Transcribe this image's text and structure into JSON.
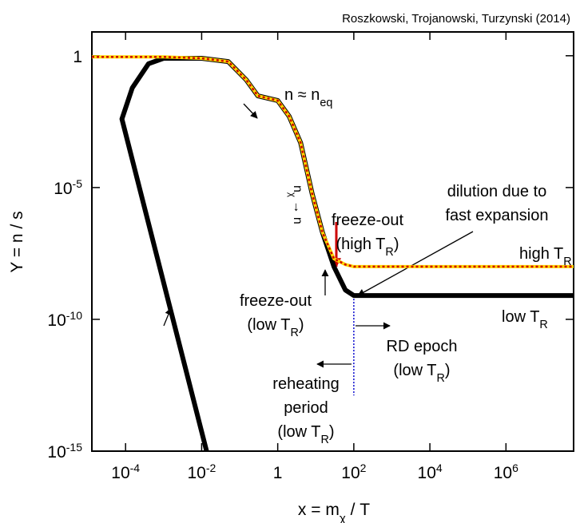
{
  "chart_data": {
    "type": "line",
    "title": "Roszkowski, Trojanowski, Turzynski (2014)",
    "xlabel": [
      {
        "text": "x = m"
      },
      {
        "text": "χ",
        "sub": true
      },
      {
        "text": " / T"
      }
    ],
    "ylabel": [
      {
        "text": "Y = n / s"
      }
    ],
    "xscale": "log",
    "yscale": "log",
    "xlim": [
      1.3e-05,
      60000000
    ],
    "ylim": [
      1e-15,
      8
    ],
    "xticks": [
      {
        "value": 0.0001,
        "label": "10",
        "sup": "-4"
      },
      {
        "value": 0.01,
        "label": "10",
        "sup": "-2"
      },
      1,
      {
        "value": 100,
        "label": "10",
        "sup": "2"
      },
      {
        "value": 10000,
        "label": "10",
        "sup": "4"
      },
      {
        "value": 1000000,
        "label": "10",
        "sup": "6"
      }
    ],
    "yticks": [
      1,
      {
        "value": 1e-05,
        "label": "10",
        "sup": "-5"
      },
      {
        "value": 1e-10,
        "label": "10",
        "sup": "-10"
      },
      {
        "value": 1e-15,
        "label": "10",
        "sup": "-15"
      }
    ],
    "series": [
      {
        "color": "#000000",
        "x": [
          0.0135,
          8e-05,
          0.00015,
          0.0004,
          0.001,
          0.01,
          0.05,
          0.15,
          0.3,
          1,
          2,
          4,
          8,
          15,
          30,
          60,
          100,
          60000000
        ],
        "y": [
          1e-15,
          0.004,
          0.06,
          0.5,
          0.8,
          0.8,
          0.6,
          0.12,
          0.03,
          0.02,
          0.005,
          0.0005,
          6e-06,
          2e-07,
          1e-08,
          1.3e-09,
          8e-10,
          8e-10
        ]
      },
      {
        "color": "#ffd700",
        "dash_color": "#cc0000",
        "x": [
          1.3e-05,
          0.001,
          0.01,
          0.05,
          0.15,
          0.3,
          1,
          2,
          4,
          8,
          15,
          30,
          60,
          100,
          60000000
        ],
        "y": [
          0.9,
          0.9,
          0.8,
          0.6,
          0.12,
          0.03,
          0.02,
          0.005,
          0.0005,
          6e-06,
          2e-07,
          2e-08,
          1.2e-08,
          1e-08,
          1e-08
        ]
      }
    ],
    "reference_line": {
      "x": 100,
      "y": [
        8e-10,
        1.3e-13
      ],
      "color": "#0000cc"
    },
    "annotations": [
      {
        "lines": [
          [
            {
              "text": "n ≈ n"
            },
            {
              "text": "eq",
              "sub": true
            }
          ]
        ]
      },
      {
        "lines": [
          [
            {
              "text": "dilution due to"
            }
          ],
          [
            {
              "text": "fast expansion"
            }
          ]
        ]
      },
      {
        "color": "#cc0000",
        "lines": [
          [
            {
              "text": "freeze-out"
            }
          ],
          [
            {
              "text": "(high T"
            },
            {
              "text": "R",
              "sub": true
            },
            {
              "text": ")"
            }
          ]
        ]
      },
      {
        "color": "#cc0000",
        "lines": [
          [
            {
              "text": "high T"
            },
            {
              "text": "R",
              "sub": true
            }
          ]
        ]
      },
      {
        "lines": [
          [
            {
              "text": "freeze-out"
            }
          ],
          [
            {
              "text": "(low T"
            },
            {
              "text": "R",
              "sub": true
            },
            {
              "text": ")"
            }
          ]
        ]
      },
      {
        "lines": [
          [
            {
              "text": "low T"
            },
            {
              "text": "R",
              "sub": true
            }
          ]
        ]
      },
      {
        "lines": [
          [
            {
              "text": "RD epoch"
            }
          ],
          [
            {
              "text": "(low T"
            },
            {
              "text": "R",
              "sub": true
            },
            {
              "text": ")"
            }
          ]
        ]
      },
      {
        "lines": [
          [
            {
              "text": "reheating"
            }
          ],
          [
            {
              "text": "period"
            }
          ],
          [
            {
              "text": "(low T"
            },
            {
              "text": "R",
              "sub": true
            },
            {
              "text": ")"
            }
          ]
        ]
      },
      {
        "lines": [
          [
            {
              "text": "n"
            },
            {
              "text": "χ",
              "sub": true
            },
            {
              "text": " → n"
            }
          ]
        ]
      }
    ]
  }
}
